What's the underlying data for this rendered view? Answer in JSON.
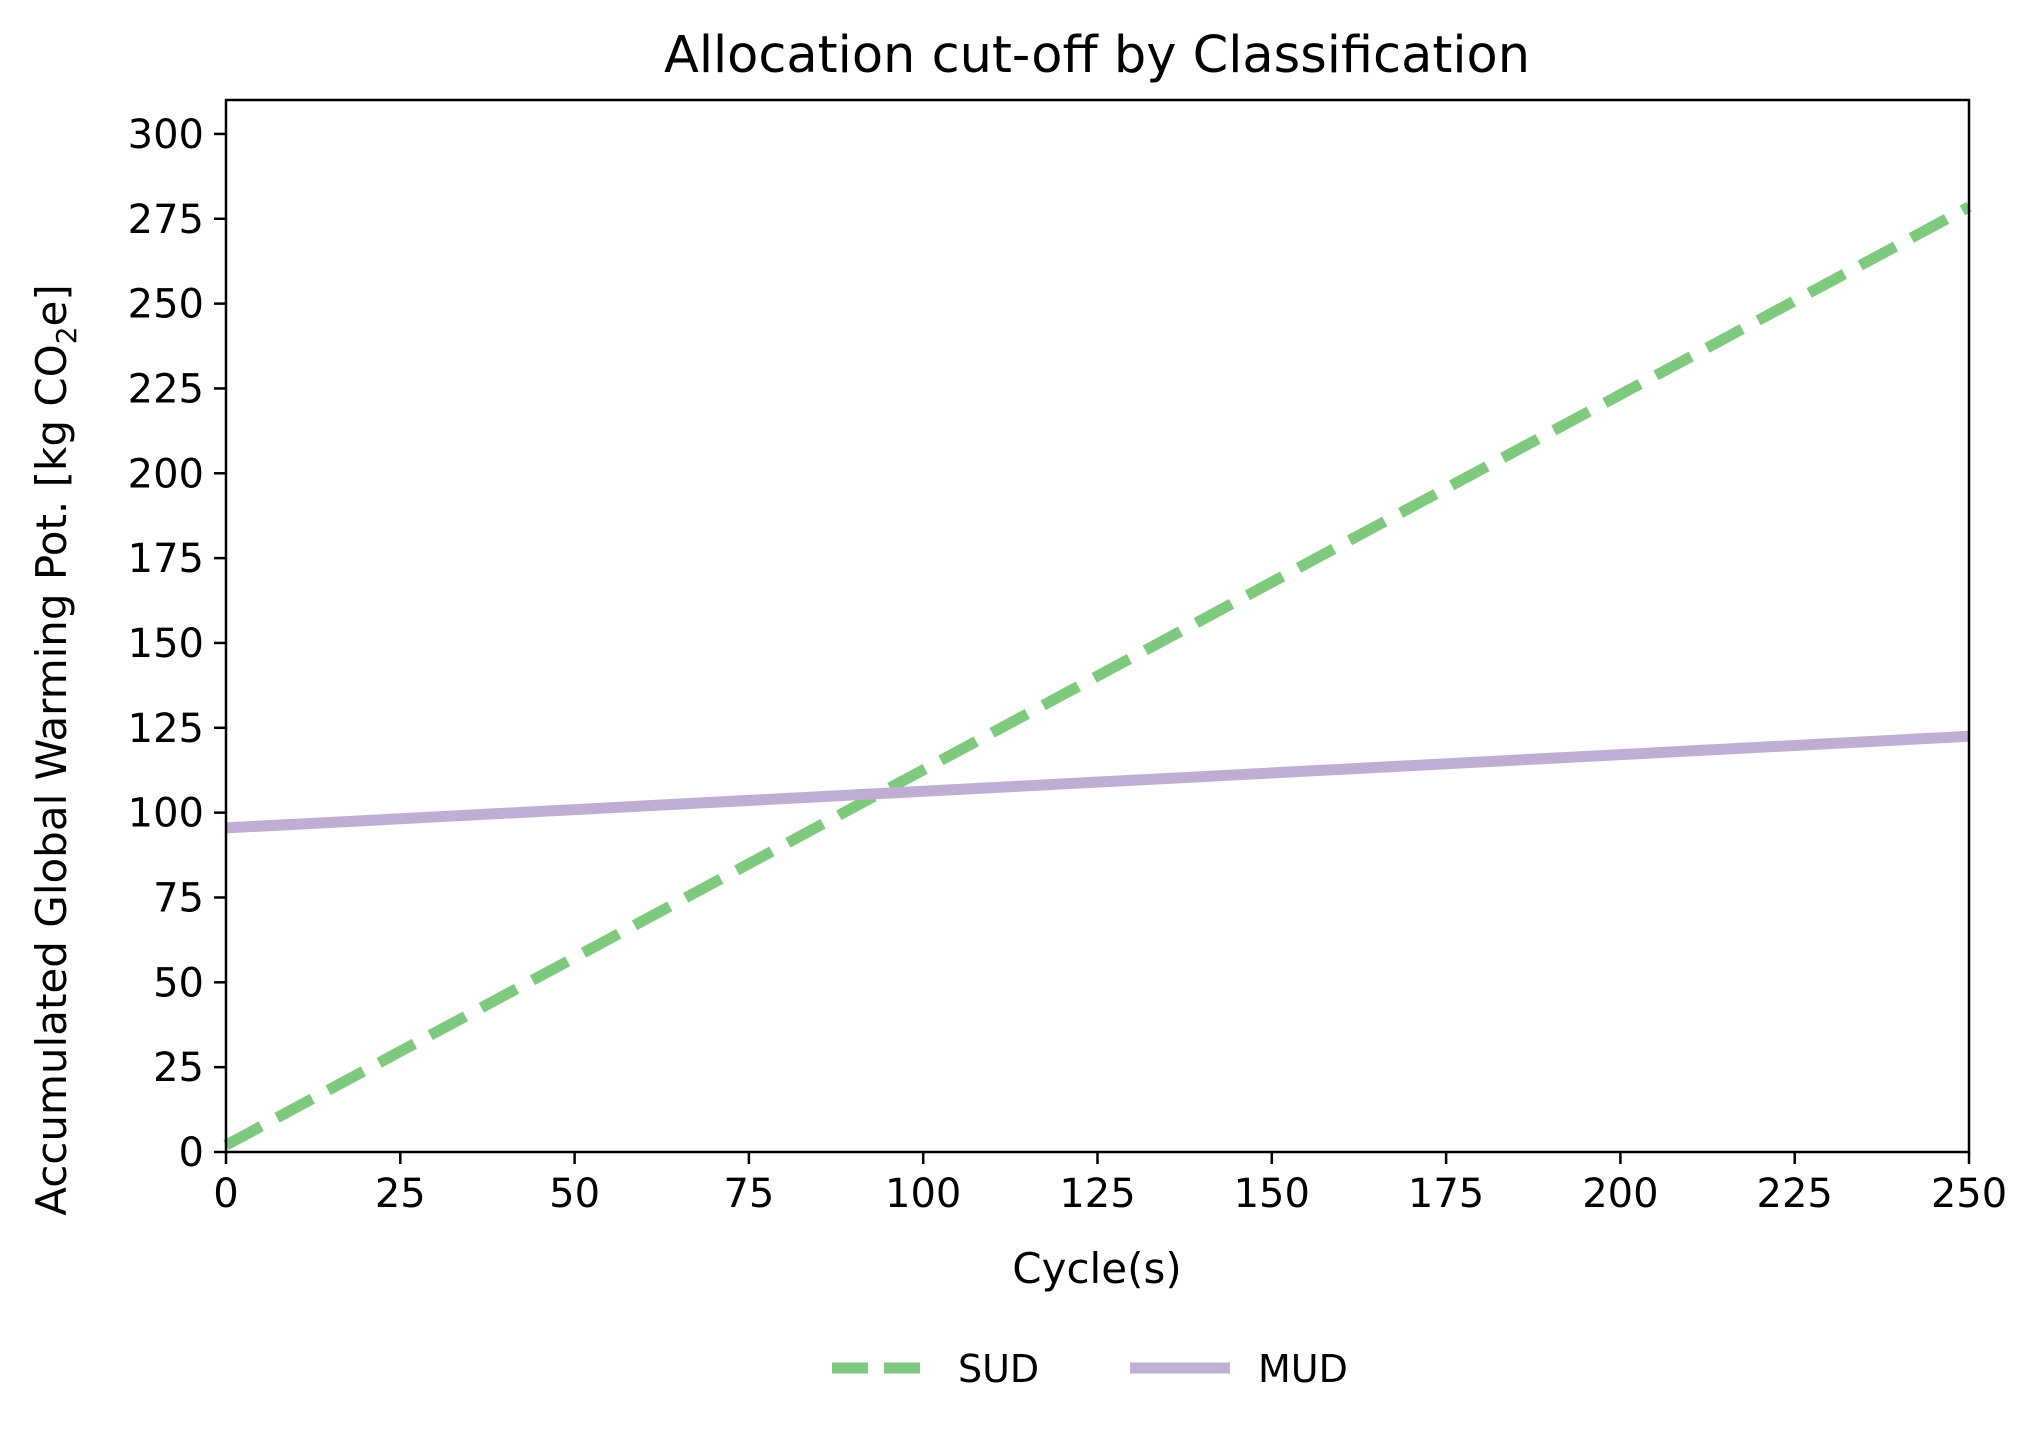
{
  "chart_data": {
    "type": "line",
    "title": "Allocation cut-off by Classification",
    "xlabel": "Cycle(s)",
    "ylabel": {
      "prefix": "Accumulated Global Warming Pot. [kg CO",
      "subscript": "2",
      "suffix": "e]"
    },
    "xlim": [
      0,
      250
    ],
    "ylim": [
      0,
      310
    ],
    "xticks": [
      0,
      25,
      50,
      75,
      100,
      125,
      150,
      175,
      200,
      225,
      250
    ],
    "yticks": [
      0,
      25,
      50,
      75,
      100,
      125,
      150,
      175,
      200,
      225,
      250,
      275,
      300
    ],
    "grid": false,
    "legend_position": "bottom-center",
    "series": [
      {
        "name": "SUD",
        "color": "#7fc97f",
        "line_style": "dashed",
        "x": [
          0,
          250
        ],
        "y": [
          2,
          278.5
        ]
      },
      {
        "name": "MUD",
        "color": "#beaed4",
        "line_style": "solid",
        "x": [
          0,
          250
        ],
        "y": [
          95.5,
          122.5
        ]
      }
    ]
  }
}
